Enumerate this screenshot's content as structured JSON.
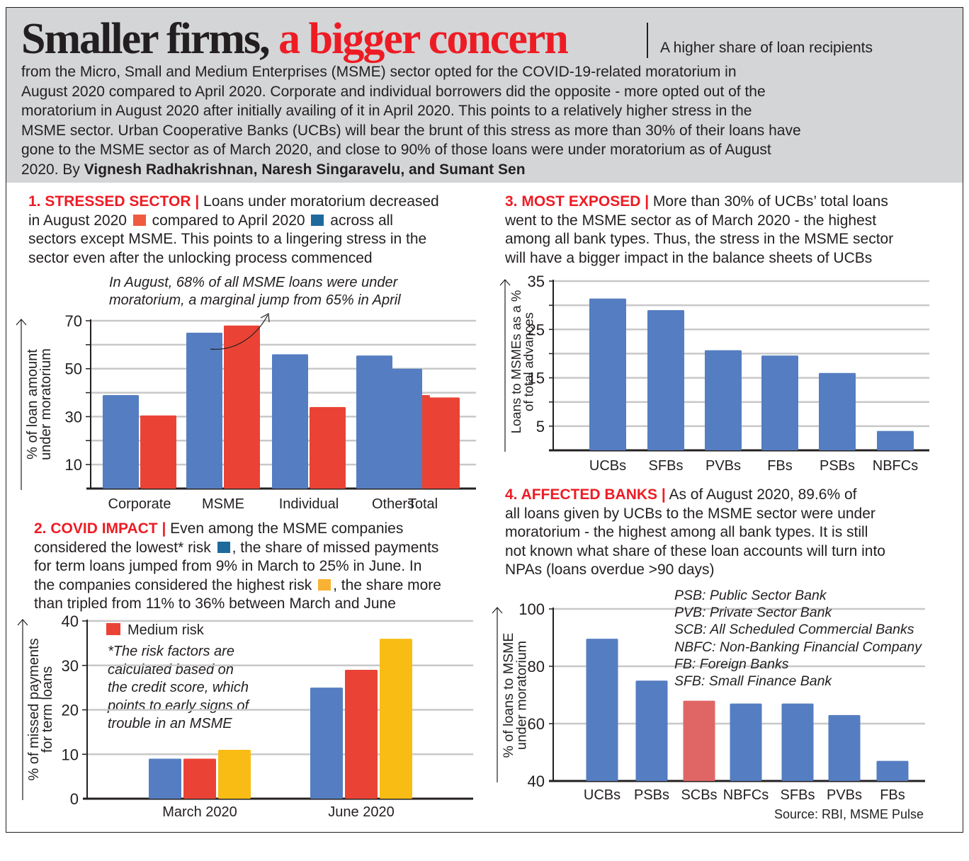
{
  "header": {
    "title_black": "Smaller firms,",
    "title_red": " a bigger concern",
    "intro_first": "A higher share of loan recipients",
    "intro_lines": [
      "from the Micro, Small and Medium Enterprises (MSME) sector opted for the COVID-19-related moratorium in",
      "August 2020 compared to April 2020. Corporate and individual borrowers did the opposite - more opted out of the",
      "moratorium in August 2020 after initially availing of it in April 2020. This points to a relatively higher stress in the",
      "MSME sector. Urban Cooperative Banks (UCBs) will bear the brunt of this stress as more than 30% of their loans have",
      "gone to the MSME sector as of March 2020, and close to 90% of those loans were under moratorium as of August"
    ],
    "byline_prefix": "2020. By ",
    "byline_authors": "Vignesh Radhakrishnan, Naresh Singaravelu, and Sumant Sen"
  },
  "colors": {
    "blue": "#557dc1",
    "red": "#ea4335",
    "yellow": "#f9bc15",
    "scb_red": "#e06666",
    "legend_red": "#ef5b3f",
    "legend_blue": "#1f6a9c",
    "legend_yellow": "#f9b233",
    "accent": "#ed1c24",
    "grid": "#c8c8c8",
    "header_bg": "#d4d5d7"
  },
  "section1": {
    "label": "1. STRESSED SECTOR |",
    "l1": " Loans under moratorium decreased",
    "l2a": "in August 2020 ",
    "l2b": " compared to April 2020 ",
    "l2c": " across all",
    "l3": "sectors except MSME. This points to a lingering stress in the",
    "l4": "sector even after the unlocking process commenced",
    "annotation": [
      "In August, 68% of all MSME loans were under",
      "moratorium, a marginal jump from 65% in April"
    ]
  },
  "section2": {
    "label": "2. COVID IMPACT |",
    "l1": " Even among the MSME companies",
    "l2a": "considered the lowest* risk ",
    "l2b": ", the share of missed payments",
    "l3": "for term loans jumped from 9% in March to 25% in June. In",
    "l4a": "the companies considered the highest risk ",
    "l4b": ", the share more",
    "l5": "than tripled from 11% to 36% between March and June",
    "footnote": [
      "*The risk factors are",
      "calculated based on",
      "the credit score, which",
      "points to early signs of",
      "trouble in an MSME"
    ]
  },
  "section3": {
    "label": "3. MOST EXPOSED |",
    "l1": " More than 30% of UCBs’ total loans",
    "l2": "went to the MSME sector as of March 2020 - the highest",
    "l3": "among all bank types. Thus, the stress in the MSME sector",
    "l4": "will have a bigger impact in the balance sheets of UCBs"
  },
  "section4": {
    "label": "4. AFFECTED BANKS |",
    "l1": " As of August 2020, 89.6% of",
    "l2": "all loans given by UCBs to the MSME sector were under",
    "l3": "moratorium - the highest among all bank types. It is still",
    "l4": "not known what share of these loan accounts will turn into",
    "l5": "NPAs (loans overdue >90 days)",
    "glossary": [
      "PSB: Public Sector Bank",
      "PVB: Private Sector Bank",
      "SCB: All Scheduled Commercial Banks",
      "NBFC: Non-Banking Financial Company",
      "FB: Foreign Banks",
      "SFB: Small Finance Bank"
    ],
    "source": "Source: RBI, MSME Pulse"
  },
  "chart_data": [
    {
      "id": "stressed-sector",
      "type": "bar",
      "title": "1. STRESSED SECTOR",
      "categories": [
        "Corporate",
        "MSME",
        "Individual",
        "Others",
        "Total"
      ],
      "series": [
        {
          "name": "April 2020",
          "color": "#557dc1",
          "values": [
            39,
            65,
            56,
            55.5,
            50
          ]
        },
        {
          "name": "August 2020",
          "color": "#ea4335",
          "values": [
            30.5,
            68,
            34,
            39,
            38
          ]
        }
      ],
      "xlabel": "",
      "ylabel": "% of loan amount under moratorium",
      "ylim": [
        0,
        70
      ],
      "yticks": [
        10,
        30,
        50,
        70
      ],
      "gridlines": [
        10,
        20,
        30,
        40,
        50,
        60,
        70
      ],
      "grid": true,
      "annotation": "In August, 68% of all MSME loans were under moratorium, a marginal jump from 65% in April"
    },
    {
      "id": "covid-impact",
      "type": "bar",
      "title": "2. COVID IMPACT",
      "categories": [
        "March 2020",
        "June 2020"
      ],
      "series": [
        {
          "name": "Lowest risk",
          "color": "#557dc1",
          "values": [
            9,
            25
          ]
        },
        {
          "name": "Medium risk",
          "color": "#ea4335",
          "values": [
            9,
            29
          ]
        },
        {
          "name": "Highest risk",
          "color": "#f9bc15",
          "values": [
            11,
            36
          ]
        }
      ],
      "xlabel": "",
      "ylabel": "% of missed payments for term loans",
      "ylim": [
        0,
        40
      ],
      "yticks": [
        0,
        10,
        20,
        30,
        40
      ],
      "grid": true,
      "legend": {
        "entries": [
          "Medium risk"
        ],
        "position": "top-left"
      }
    },
    {
      "id": "most-exposed",
      "type": "bar",
      "title": "3. MOST EXPOSED",
      "categories": [
        "UCBs",
        "SFBs",
        "PVBs",
        "FBs",
        "PSBs",
        "NBFCs"
      ],
      "series": [
        {
          "name": "Loans to MSMEs as a % of total advances",
          "color": "#557dc1",
          "values": [
            31.4,
            29,
            20.7,
            19.6,
            16,
            4
          ]
        }
      ],
      "xlabel": "",
      "ylabel": "Loans to MSMEs as a % of total advances",
      "ylim": [
        0,
        35
      ],
      "yticks": [
        5,
        15,
        25,
        35
      ],
      "gridlines": [
        5,
        10,
        15,
        20,
        25,
        30,
        35
      ],
      "grid": true
    },
    {
      "id": "affected-banks",
      "type": "bar",
      "title": "4. AFFECTED BANKS",
      "categories": [
        "UCBs",
        "PSBs",
        "SCBs",
        "NBFCs",
        "SFBs",
        "PVBs",
        "FBs"
      ],
      "series": [
        {
          "name": "% of loans to MSME under moratorium",
          "values": [
            89.6,
            75,
            68,
            67,
            67,
            63,
            47
          ],
          "colors": [
            "#557dc1",
            "#557dc1",
            "#e06666",
            "#557dc1",
            "#557dc1",
            "#557dc1",
            "#557dc1"
          ]
        }
      ],
      "xlabel": "",
      "ylabel": "% of loans to MSME under moratorium",
      "ylim": [
        40,
        100
      ],
      "yticks": [
        40,
        60,
        80,
        100
      ],
      "grid": true
    }
  ]
}
